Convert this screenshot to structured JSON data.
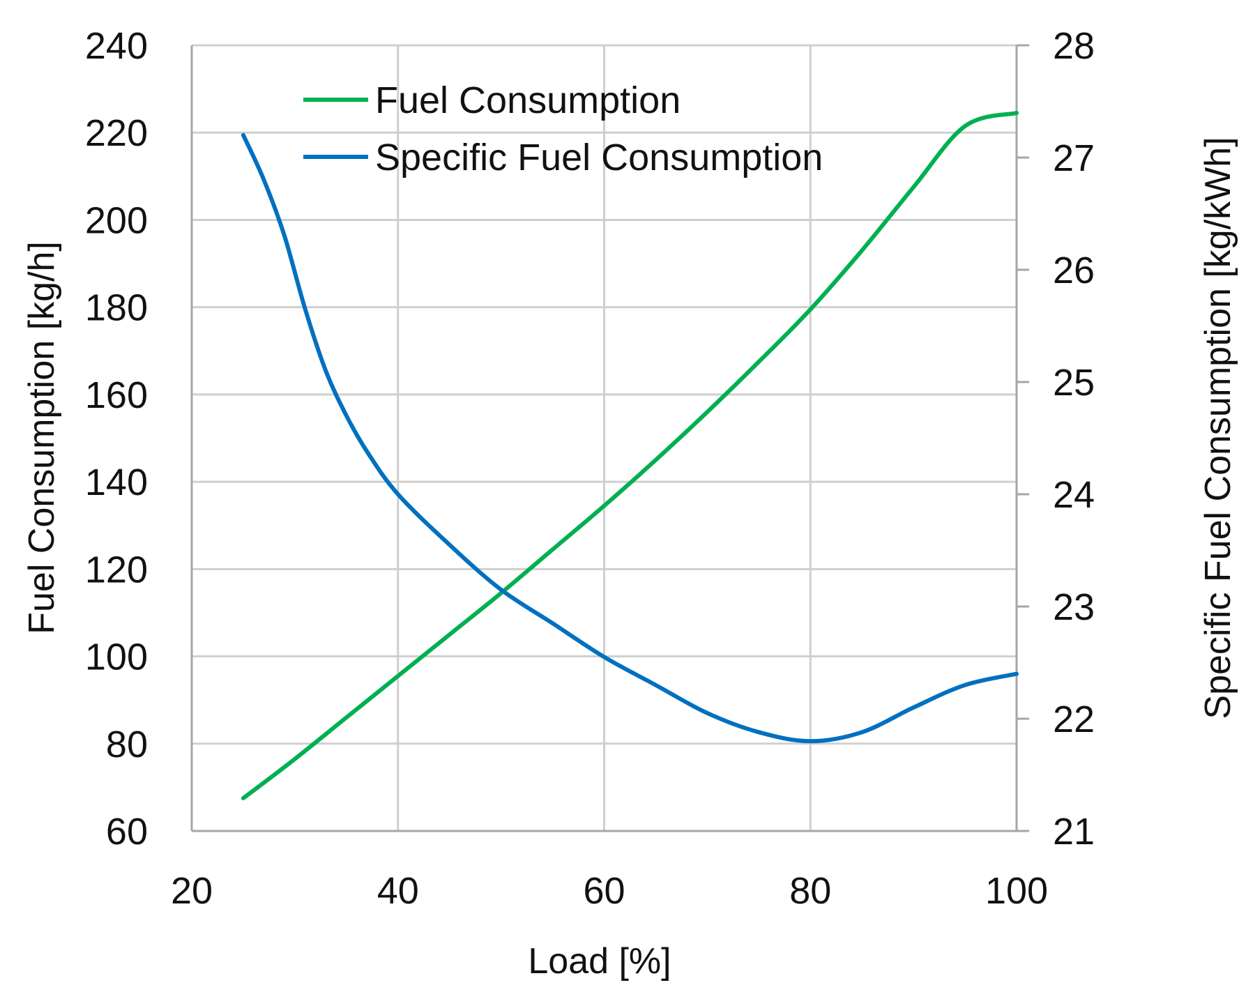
{
  "chart_data": {
    "type": "line",
    "xlabel": "Load [%]",
    "ylabel_left": "Fuel Consumption [kg/h]",
    "ylabel_right": "Specific Fuel Consumption [kg/kWh]",
    "xlim": [
      20,
      100
    ],
    "ylim_left": [
      60,
      240
    ],
    "ylim_right": [
      21,
      28
    ],
    "x_ticks": [
      "20",
      "40",
      "60",
      "80",
      "100"
    ],
    "y_left_ticks": [
      "60",
      "80",
      "100",
      "120",
      "140",
      "160",
      "180",
      "200",
      "220",
      "240"
    ],
    "y_right_ticks": [
      "21",
      "22",
      "23",
      "24",
      "25",
      "26",
      "27",
      "28"
    ],
    "grid": true,
    "legend_position": "top-left",
    "series": [
      {
        "name": "Fuel Consumption",
        "axis": "left",
        "color": "#00b050",
        "x": [
          25,
          30,
          35,
          40,
          45,
          50,
          55,
          60,
          65,
          70,
          75,
          80,
          85,
          90,
          95,
          100
        ],
        "y": [
          67.5,
          76.5,
          86,
          95.5,
          105,
          114.5,
          124.5,
          134.5,
          145,
          156,
          167.5,
          179.5,
          193,
          207.5,
          221.5,
          224.5
        ]
      },
      {
        "name": "Specific Fuel Consumption",
        "axis": "right",
        "color": "#0070c0",
        "x": [
          25,
          27,
          29,
          31,
          33,
          35,
          37,
          40,
          45,
          50,
          55,
          60,
          65,
          70,
          75,
          80,
          85,
          90,
          95,
          100
        ],
        "y": [
          27.2,
          26.8,
          26.3,
          25.65,
          25.1,
          24.7,
          24.38,
          24.0,
          23.55,
          23.15,
          22.85,
          22.55,
          22.3,
          22.05,
          21.88,
          21.8,
          21.88,
          22.1,
          22.3,
          22.4
        ]
      }
    ]
  }
}
